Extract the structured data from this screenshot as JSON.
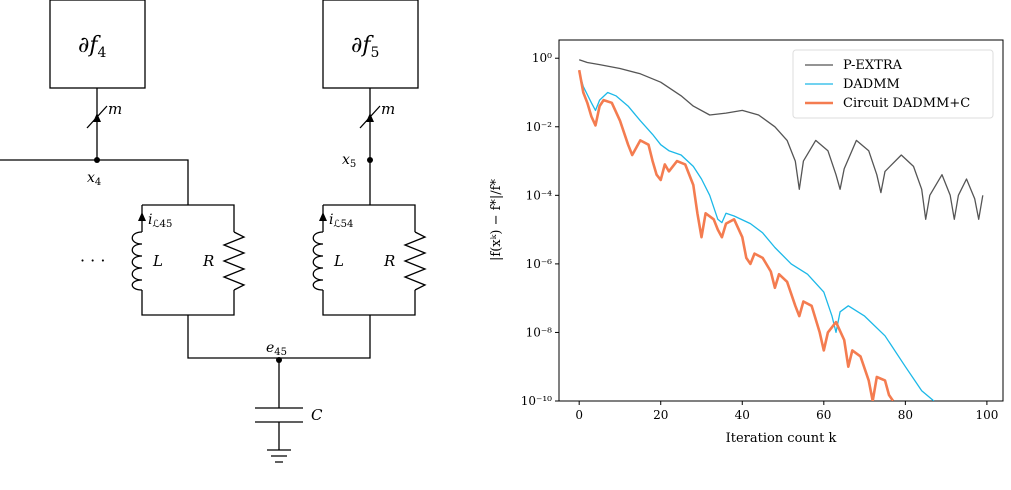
{
  "diagram": {
    "df4": {
      "main": "∂f",
      "sub": "4"
    },
    "df5": {
      "main": "∂f",
      "sub": "5"
    },
    "m4": "m",
    "m5": "m",
    "x4": {
      "main": "x",
      "sub": "4"
    },
    "x5": {
      "main": "x",
      "sub": "5"
    },
    "i45": {
      "main": "i",
      "sub": "ℒ45"
    },
    "i54": {
      "main": "i",
      "sub": "ℒ54"
    },
    "L1": "L",
    "R1": "R",
    "L2": "L",
    "R2": "R",
    "dots": "· · ·",
    "e45": {
      "main": "e",
      "sub": "45"
    },
    "C": "C"
  },
  "chart_data": {
    "type": "line",
    "xlabel": "Iteration count k",
    "ylabel": "|f(xᵏ) − f*|/f*",
    "xlim": [
      -4.95,
      103.95
    ],
    "xticks": [
      0,
      20,
      40,
      60,
      80,
      100
    ],
    "ylim": [
      1e-10,
      3.4
    ],
    "yscale": "log",
    "yticks": [
      {
        "value": 1e-10,
        "label": "10⁻¹⁰"
      },
      {
        "value": 1e-08,
        "label": "10⁻⁸"
      },
      {
        "value": 1e-06,
        "label": "10⁻⁶"
      },
      {
        "value": 0.0001,
        "label": "10⁻⁴"
      },
      {
        "value": 0.01,
        "label": "10⁻²"
      },
      {
        "value": 1,
        "label": "10⁰"
      }
    ],
    "legend": "upper right",
    "series": [
      {
        "name": "P-EXTRA",
        "color": "#555555",
        "x": [
          0,
          2,
          5,
          10,
          15,
          20,
          25,
          28,
          32,
          36,
          40,
          44,
          48,
          51,
          53,
          54,
          55,
          58,
          61,
          63,
          64,
          65,
          68,
          71,
          73,
          74,
          75,
          79,
          82,
          84,
          85,
          86,
          89,
          91,
          92,
          93,
          95,
          97,
          98,
          99
        ],
        "values": [
          0.9,
          0.75,
          0.65,
          0.5,
          0.35,
          0.2,
          0.08,
          0.04,
          0.022,
          0.025,
          0.03,
          0.022,
          0.01,
          0.004,
          0.001,
          0.00015,
          0.001,
          0.004,
          0.002,
          0.0004,
          0.00015,
          0.0006,
          0.004,
          0.002,
          0.0004,
          0.00012,
          0.0005,
          0.0015,
          0.0007,
          0.00015,
          2e-05,
          0.0001,
          0.0004,
          0.0001,
          2e-05,
          0.0001,
          0.0003,
          8e-05,
          2e-05,
          0.0001
        ]
      },
      {
        "name": "DADMM",
        "color": "#1cb8e8",
        "x": [
          0,
          1,
          3,
          4,
          5,
          7,
          9,
          12,
          15,
          18,
          20,
          22,
          25,
          28,
          30,
          32,
          34,
          35,
          36,
          38,
          42,
          45,
          48,
          52,
          56,
          60,
          62,
          63,
          64,
          66,
          70,
          75,
          80,
          84,
          87
        ],
        "values": [
          0.4,
          0.15,
          0.05,
          0.03,
          0.06,
          0.1,
          0.08,
          0.04,
          0.015,
          0.006,
          0.003,
          0.002,
          0.0015,
          0.0007,
          0.0003,
          0.0001,
          2e-05,
          1.6e-05,
          3e-05,
          2.5e-05,
          1.5e-05,
          8e-06,
          3e-06,
          1e-06,
          5e-07,
          1.5e-07,
          3e-08,
          1e-08,
          4e-08,
          6e-08,
          3e-08,
          8e-09,
          1e-09,
          2e-10,
          1e-10
        ]
      },
      {
        "name": "Circuit DADMM+C",
        "color": "#f47c50",
        "x": [
          0,
          1,
          2,
          3,
          4,
          5,
          6,
          8,
          10,
          12,
          13,
          15,
          17,
          18,
          19,
          20,
          21,
          22,
          24,
          26,
          28,
          29,
          30,
          31,
          33,
          34,
          35,
          36,
          38,
          40,
          41,
          42,
          43,
          45,
          47,
          48,
          49,
          51,
          53,
          54,
          55,
          57,
          59,
          60,
          61,
          63,
          65,
          66,
          67,
          69,
          71,
          72,
          73,
          75,
          76,
          77
        ],
        "values": [
          0.45,
          0.1,
          0.05,
          0.02,
          0.011,
          0.04,
          0.06,
          0.05,
          0.015,
          0.003,
          0.0015,
          0.004,
          0.003,
          0.001,
          0.0004,
          0.00028,
          0.0008,
          0.0005,
          0.001,
          0.0008,
          0.0002,
          3e-05,
          6e-06,
          3e-05,
          2e-05,
          1e-05,
          6e-06,
          1.5e-05,
          2e-05,
          6e-06,
          1.5e-06,
          1e-06,
          2e-06,
          1.5e-06,
          6e-07,
          2e-07,
          5e-07,
          3e-07,
          6e-08,
          3e-08,
          8e-08,
          6e-08,
          1e-08,
          3e-09,
          1e-08,
          2e-08,
          6e-09,
          1e-09,
          3e-09,
          2e-09,
          4e-10,
          1e-10,
          5e-10,
          4e-10,
          1.5e-10,
          1e-10
        ]
      }
    ]
  }
}
